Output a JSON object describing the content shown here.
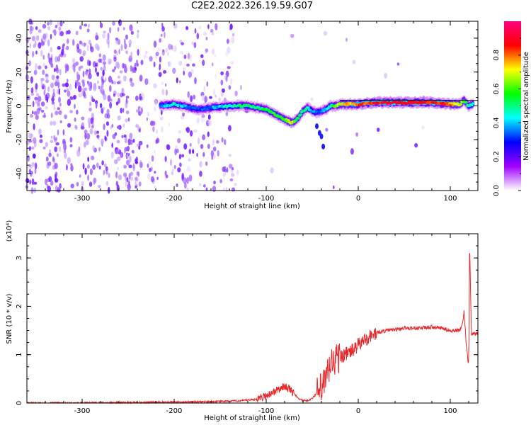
{
  "title": "C2E2.2022.326.19.59.G07",
  "chart_data": [
    {
      "type": "heatmap",
      "title": "C2E2.2022.326.19.59.G07",
      "xlabel": "Height of straight line (km)",
      "ylabel": "Frequency (Hz)",
      "xlim": [
        -360,
        130
      ],
      "ylim": [
        -50,
        50
      ],
      "xticks": [
        -300,
        -200,
        -100,
        0,
        100
      ],
      "yticks": [
        -40,
        -20,
        0,
        20,
        40
      ],
      "colorbar": {
        "label": "Normalized spectral amplitude",
        "range": [
          0,
          1
        ],
        "ticks": [
          "0.0",
          "0.2",
          "0.4",
          "0.6",
          "0.8"
        ],
        "colors": [
          "#ffffff",
          "#a000ff",
          "#0000ff",
          "#00ffff",
          "#00ff00",
          "#ffff00",
          "#ff0000",
          "#ff0080"
        ]
      },
      "ridge": {
        "x": [
          -215,
          -200,
          -190,
          -175,
          -160,
          -140,
          -130,
          -120,
          -110,
          -100,
          -90,
          -80,
          -72,
          -65,
          -60,
          -55,
          -50,
          -45,
          -40,
          -35,
          -30,
          -25,
          -20,
          -10,
          0,
          20,
          40,
          60,
          80,
          100,
          110,
          115,
          120,
          125
        ],
        "y": [
          0,
          1,
          0,
          -2,
          -1,
          0,
          0,
          0,
          -1,
          -2,
          -5,
          -8,
          -10,
          -7,
          -3,
          -1,
          -3,
          -4,
          -3,
          -2,
          0,
          0,
          1,
          1,
          1,
          2,
          2,
          2,
          2,
          1,
          1,
          3,
          0,
          1
        ],
        "amplitude": [
          0.35,
          0.45,
          0.4,
          0.3,
          0.35,
          0.45,
          0.5,
          0.5,
          0.5,
          0.55,
          0.55,
          0.6,
          0.7,
          0.5,
          0.5,
          0.5,
          0.4,
          0.35,
          0.35,
          0.4,
          0.5,
          0.6,
          0.7,
          0.75,
          0.8,
          0.85,
          0.9,
          0.9,
          0.85,
          0.8,
          0.7,
          0.6,
          0.5,
          0.4
        ]
      },
      "grid": false
    },
    {
      "type": "line",
      "xlabel": "Height of straight line (km)",
      "ylabel": "SNR (10 * v/v)",
      "yexponent": "(x10⁴)",
      "xlim": [
        -360,
        130
      ],
      "ylim": [
        0,
        3.5
      ],
      "xticks": [
        -300,
        -200,
        -100,
        0,
        100
      ],
      "yticks": [
        0,
        1,
        2,
        3
      ],
      "color": "#e8282b",
      "series": [
        {
          "x": [
            -360,
            -300,
            -250,
            -200,
            -150,
            -125,
            -110,
            -100,
            -95,
            -90,
            -85,
            -80,
            -75,
            -70,
            -65,
            -60,
            -55,
            -50,
            -45,
            -40,
            -35,
            -30,
            -25,
            -20,
            -15,
            -10,
            -5,
            0,
            10,
            20,
            30,
            40,
            50,
            60,
            70,
            80,
            90,
            100,
            110,
            113,
            115,
            117,
            119,
            120,
            121,
            123,
            125,
            130
          ],
          "y": [
            0.0,
            0.0,
            0.01,
            0.02,
            0.03,
            0.05,
            0.08,
            0.15,
            0.2,
            0.25,
            0.3,
            0.35,
            0.3,
            0.2,
            0.1,
            0.05,
            0.05,
            0.1,
            0.2,
            0.3,
            0.5,
            0.8,
            0.9,
            0.95,
            1.0,
            1.05,
            1.1,
            1.2,
            1.35,
            1.45,
            1.5,
            1.52,
            1.55,
            1.55,
            1.55,
            1.57,
            1.55,
            1.5,
            1.5,
            1.6,
            1.9,
            1.3,
            0.9,
            0.8,
            3.3,
            1.4,
            1.45,
            1.42
          ]
        }
      ],
      "grid": false
    }
  ]
}
